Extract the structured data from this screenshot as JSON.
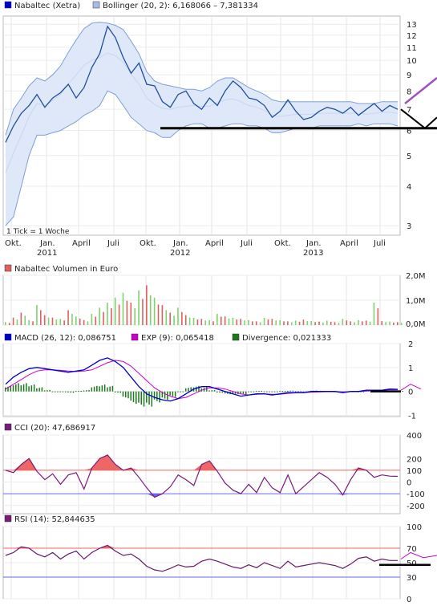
{
  "colors": {
    "price": "#1f4f9e",
    "band_fill": "#dfe8f8",
    "band_line": "#7f9fd6",
    "bb_mid": "#c9d6ee",
    "volume_up": "#7fd36b",
    "volume_down": "#e06060",
    "macd": "#0000cc",
    "signal": "#cc00cc",
    "divergence": "#1a7a1a",
    "cci": "#7a1a7a",
    "rsi": "#6a1a6a",
    "overzone": "#ee6666",
    "underzone": "#6666ee",
    "trend": "#000000",
    "trend_up": "#a050c0"
  },
  "chart_data": [
    {
      "type": "line",
      "legend": [
        {
          "label": "Nabaltec (Xetra)",
          "icon": "blue-square-icon"
        },
        {
          "label": "Bollinger (20, 2): 6,168066 – 7,381334",
          "icon": "light-blue-square-icon"
        }
      ],
      "y_scale": "log",
      "ylim": [
        2.8,
        13.8
      ],
      "y_ticks": [
        "13",
        "12",
        "11",
        "10",
        "9",
        "8",
        "7",
        "6",
        "5",
        "4",
        "3"
      ],
      "x_ticks": [
        {
          "label": "Okt.",
          "sub": ""
        },
        {
          "label": "Jan.",
          "sub": "2011"
        },
        {
          "label": "April",
          "sub": ""
        },
        {
          "label": "Juli",
          "sub": ""
        },
        {
          "label": "Okt.",
          "sub": ""
        },
        {
          "label": "Jan.",
          "sub": "2012"
        },
        {
          "label": "April",
          "sub": ""
        },
        {
          "label": "Juli",
          "sub": ""
        },
        {
          "label": "Okt.",
          "sub": ""
        },
        {
          "label": "Jan.",
          "sub": "2013"
        },
        {
          "label": "April",
          "sub": ""
        },
        {
          "label": "Juli",
          "sub": ""
        }
      ],
      "note": "1 Tick = 1 Woche",
      "series": [
        {
          "name": "Nabaltec (Xetra)",
          "values": [
            5.5,
            6.2,
            6.8,
            7.2,
            7.8,
            7.1,
            7.6,
            7.9,
            8.4,
            7.6,
            8.2,
            9.5,
            10.5,
            12.8,
            11.8,
            10.2,
            9.1,
            9.8,
            8.4,
            8.3,
            7.4,
            7.1,
            7.8,
            8.0,
            7.3,
            7.0,
            7.6,
            7.2,
            8.0,
            8.6,
            8.2,
            7.6,
            7.5,
            7.2,
            6.6,
            6.9,
            7.5,
            6.9,
            6.5,
            6.6,
            6.9,
            7.1,
            7.0,
            6.8,
            7.1,
            6.7,
            7.0,
            7.3,
            6.9,
            7.2,
            7.0
          ]
        },
        {
          "name": "Bollinger upper",
          "values": [
            5.8,
            7.0,
            7.6,
            8.3,
            8.8,
            8.6,
            9.0,
            9.6,
            10.6,
            11.6,
            12.6,
            13.1,
            13.2,
            13.1,
            12.9,
            12.5,
            11.5,
            10.5,
            9.2,
            8.6,
            8.4,
            8.3,
            8.2,
            8.1,
            8.1,
            8.0,
            8.2,
            8.6,
            8.8,
            8.8,
            8.5,
            8.2,
            8.0,
            7.8,
            7.5,
            7.4,
            7.4,
            7.4,
            7.4,
            7.4,
            7.4,
            7.4,
            7.4,
            7.4,
            7.4,
            7.3,
            7.3,
            7.3,
            7.4,
            7.4,
            7.4
          ]
        },
        {
          "name": "Bollinger lower",
          "values": [
            3.0,
            3.2,
            4.0,
            5.0,
            5.8,
            5.8,
            5.9,
            6.0,
            6.2,
            6.4,
            6.7,
            6.9,
            7.2,
            8.0,
            7.8,
            7.2,
            6.6,
            6.3,
            6.0,
            5.9,
            5.7,
            5.7,
            6.0,
            6.2,
            6.3,
            6.3,
            6.1,
            6.1,
            6.2,
            6.3,
            6.3,
            6.2,
            6.2,
            6.1,
            5.9,
            5.9,
            6.0,
            6.1,
            6.1,
            6.1,
            6.2,
            6.2,
            6.2,
            6.2,
            6.2,
            6.3,
            6.2,
            6.3,
            6.3,
            6.3,
            6.2
          ]
        }
      ]
    },
    {
      "type": "bar",
      "legend": [
        {
          "label": "Nabaltec Volumen in Euro",
          "icon": "red-square-icon"
        }
      ],
      "y_ticks": [
        "2,0M",
        "1,0M",
        "0,0M"
      ],
      "ylim": [
        0,
        2000000
      ],
      "values": [
        120000,
        300000,
        500000,
        200000,
        800000,
        400000,
        300000,
        250000,
        600000,
        350000,
        200000,
        450000,
        700000,
        900000,
        1100000,
        1300000,
        900000,
        1400000,
        1600000,
        1100000,
        800000,
        500000,
        700000,
        400000,
        300000,
        250000,
        200000,
        450000,
        350000,
        300000,
        250000,
        200000,
        150000,
        300000,
        250000,
        200000,
        150000,
        180000,
        220000,
        160000,
        140000,
        180000,
        120000,
        250000,
        150000,
        200000,
        180000,
        900000,
        160000,
        140000,
        120000
      ],
      "up": [
        1,
        0,
        0,
        1,
        1,
        0,
        0,
        1,
        0,
        1,
        0,
        1,
        1,
        1,
        1,
        1,
        0,
        1,
        0,
        1,
        0,
        0,
        1,
        0,
        1,
        0,
        1,
        1,
        0,
        1,
        0,
        1,
        0,
        1,
        0,
        1,
        0,
        1,
        0,
        1,
        0,
        1,
        0,
        1,
        0,
        1,
        0,
        1,
        0,
        1,
        0
      ]
    },
    {
      "type": "line",
      "legend": [
        {
          "label": "MACD (26, 12): 0,086751",
          "icon": "blue-square-icon"
        },
        {
          "label": "EXP (9): 0,065418",
          "icon": "magenta-square-icon"
        },
        {
          "label": "Divergence: 0,021333",
          "icon": "green-square-icon"
        }
      ],
      "y_ticks": [
        "2",
        "1",
        "0",
        "-1"
      ],
      "ylim": [
        -1.05,
        2
      ],
      "series": [
        {
          "name": "MACD (26, 12)",
          "values": [
            0.3,
            0.6,
            0.8,
            0.95,
            1.0,
            0.95,
            0.9,
            0.85,
            0.8,
            0.85,
            0.9,
            1.1,
            1.3,
            1.4,
            1.25,
            1.0,
            0.6,
            0.2,
            -0.1,
            -0.25,
            -0.35,
            -0.4,
            -0.3,
            -0.1,
            0.1,
            0.2,
            0.2,
            0.1,
            0.0,
            -0.1,
            -0.2,
            -0.15,
            -0.1,
            -0.1,
            -0.15,
            -0.1,
            -0.05,
            -0.05,
            -0.05,
            0.0,
            0.0,
            0.0,
            0.0,
            -0.05,
            0.0,
            0.0,
            0.05,
            0.05,
            0.05,
            0.1,
            0.09
          ]
        },
        {
          "name": "EXP (9)",
          "values": [
            0.1,
            0.3,
            0.5,
            0.7,
            0.85,
            0.9,
            0.9,
            0.88,
            0.85,
            0.83,
            0.85,
            0.9,
            1.05,
            1.2,
            1.3,
            1.25,
            1.05,
            0.75,
            0.45,
            0.15,
            -0.05,
            -0.2,
            -0.3,
            -0.25,
            -0.1,
            0.05,
            0.15,
            0.15,
            0.1,
            0.0,
            -0.1,
            -0.15,
            -0.12,
            -0.1,
            -0.12,
            -0.12,
            -0.08,
            -0.06,
            -0.05,
            -0.03,
            -0.02,
            -0.01,
            0.0,
            -0.02,
            -0.01,
            0.0,
            0.02,
            0.04,
            0.05,
            0.07,
            0.07
          ]
        }
      ]
    },
    {
      "type": "line",
      "legend": [
        {
          "label": "CCI (20): 47,686917",
          "icon": "purple-square-icon"
        }
      ],
      "y_ticks": [
        "400",
        "200",
        "100",
        "0",
        "-100",
        "-200"
      ],
      "ylim": [
        -270,
        400
      ],
      "series": [
        {
          "name": "CCI (20)",
          "values": [
            100,
            80,
            150,
            200,
            90,
            20,
            70,
            -20,
            60,
            80,
            -60,
            120,
            200,
            230,
            150,
            100,
            120,
            40,
            -50,
            -130,
            -100,
            -40,
            60,
            20,
            -30,
            150,
            180,
            90,
            -10,
            -70,
            -100,
            -20,
            -90,
            40,
            -50,
            -90,
            60,
            -100,
            -40,
            20,
            80,
            40,
            -20,
            -110,
            20,
            120,
            100,
            40,
            60,
            50,
            48
          ]
        }
      ],
      "levels": [
        100,
        -100
      ]
    },
    {
      "type": "line",
      "legend": [
        {
          "label": "RSI (14): 52,844635",
          "icon": "purple-square-icon"
        }
      ],
      "y_ticks": [
        "100",
        "70",
        "50",
        "30",
        "0"
      ],
      "ylim": [
        0,
        100
      ],
      "series": [
        {
          "name": "RSI (14)",
          "values": [
            60,
            64,
            72,
            70,
            62,
            58,
            64,
            55,
            62,
            66,
            55,
            64,
            70,
            74,
            66,
            60,
            62,
            55,
            45,
            40,
            38,
            42,
            47,
            44,
            45,
            52,
            55,
            52,
            48,
            44,
            42,
            47,
            43,
            50,
            46,
            42,
            52,
            44,
            46,
            48,
            50,
            48,
            46,
            42,
            48,
            56,
            58,
            52,
            55,
            53,
            53
          ]
        }
      ],
      "levels": [
        70,
        30
      ]
    }
  ]
}
